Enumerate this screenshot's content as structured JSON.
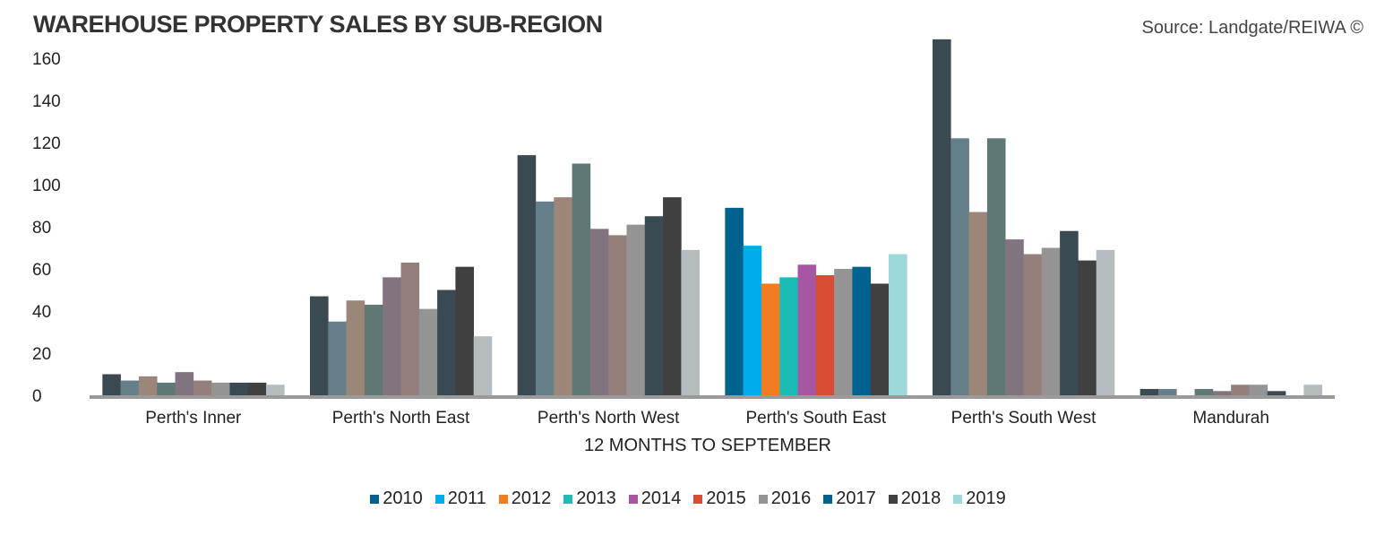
{
  "chart_data": {
    "type": "bar",
    "title": "WAREHOUSE PROPERTY SALES BY SUB-REGION",
    "source": "Source: Landgate/REIWA ©",
    "xlabel": "12 MONTHS TO SEPTEMBER",
    "ylabel": "",
    "ylim": [
      0,
      165
    ],
    "yticks": [
      0,
      20,
      40,
      60,
      80,
      100,
      120,
      140,
      160
    ],
    "grid": false,
    "legend_position": "bottom",
    "categories": [
      "Perth's Inner",
      "Perth's North East",
      "Perth's North West",
      "Perth's South East",
      "Perth's South West",
      "Mandurah"
    ],
    "highlighted_category": "Perth's South East",
    "series": [
      {
        "name": "2010",
        "values": [
          10,
          47,
          114,
          89,
          169,
          3
        ],
        "color": "#00628f",
        "muted_color": "#3b4a51"
      },
      {
        "name": "2011",
        "values": [
          7,
          35,
          92,
          71,
          122,
          3
        ],
        "color": "#00adeb",
        "muted_color": "#647f89"
      },
      {
        "name": "2012",
        "values": [
          9,
          45,
          94,
          53,
          87,
          0
        ],
        "color": "#f37b20",
        "muted_color": "#9b8678"
      },
      {
        "name": "2013",
        "values": [
          6,
          43,
          110,
          56,
          122,
          3
        ],
        "color": "#1dbbb6",
        "muted_color": "#5f7775"
      },
      {
        "name": "2014",
        "values": [
          11,
          56,
          79,
          62,
          74,
          2
        ],
        "color": "#a656a3",
        "muted_color": "#827380"
      },
      {
        "name": "2015",
        "values": [
          7,
          63,
          76,
          57,
          67,
          5
        ],
        "color": "#d94c34",
        "muted_color": "#957f7a"
      },
      {
        "name": "2016",
        "values": [
          6,
          41,
          81,
          60,
          70,
          5
        ],
        "color": "#949494",
        "muted_color": "#949494"
      },
      {
        "name": "2017",
        "values": [
          6,
          50,
          85,
          61,
          78,
          2
        ],
        "color": "#00628f",
        "muted_color": "#3a4a52"
      },
      {
        "name": "2018",
        "values": [
          6,
          61,
          94,
          53,
          64,
          0
        ],
        "color": "#404040",
        "muted_color": "#404040"
      },
      {
        "name": "2019",
        "values": [
          5,
          28,
          69,
          67,
          69,
          5
        ],
        "color": "#9dd8da",
        "muted_color": "#b4bcbd"
      }
    ],
    "axis_color": "#9a9a9a"
  }
}
